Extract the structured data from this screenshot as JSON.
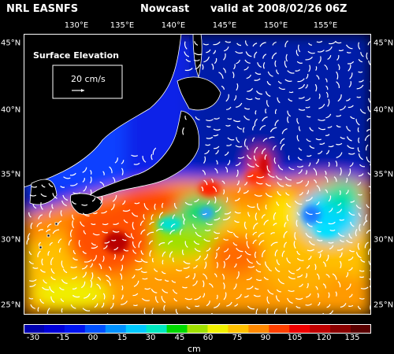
{
  "header": {
    "model": "NRL EASNFS",
    "type": "Nowcast",
    "valid": "valid at 2008/02/26 06Z"
  },
  "map": {
    "field_label": "Surface Elevation",
    "reference_vector_label": "20 cm/s",
    "lon_labels": [
      "130°E",
      "135°E",
      "140°E",
      "145°E",
      "150°E",
      "155°E"
    ],
    "lat_labels": [
      "45°N",
      "40°N",
      "35°N",
      "30°N",
      "25°N"
    ],
    "land_color": "#000000",
    "vector_color": "#ffffff",
    "frame_color": "#ffffff"
  },
  "colorbar": {
    "tick_labels": [
      "-30",
      "-15",
      "00",
      "15",
      "30",
      "45",
      "60",
      "75",
      "90",
      "105",
      "120",
      "135"
    ],
    "colors": [
      "#0000b0",
      "#0000d8",
      "#0014f0",
      "#0050ff",
      "#0090ff",
      "#00c8ff",
      "#00e8c0",
      "#00d800",
      "#a0e000",
      "#f0f000",
      "#ffc000",
      "#ff8800",
      "#ff4000",
      "#ee0000",
      "#c00000",
      "#8a0000",
      "#5a0000"
    ],
    "unit": "cm"
  }
}
